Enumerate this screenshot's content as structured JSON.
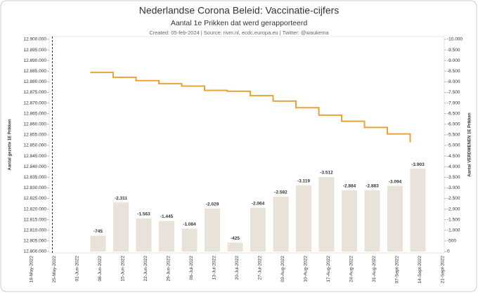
{
  "chart_data": {
    "type": "bar-line",
    "title": "Nederlandse Corona Beleid: Vaccinatie-cijfers",
    "subtitle": "Aantal 1e Prikken dat werd gerapporteerd",
    "caption": "Created: 05-feb-2024 | Source: rivm.nl,  ecdc.europa.eu | Twitter: @waukema",
    "ylabel": "Aantal gezette 1E Prikken",
    "y2label": "Aantal VERDWENEN 1E Prikken",
    "categories": [
      "18-May-2022",
      "25-May-2022",
      "01-Jun-2022",
      "08-Jun-2022",
      "15-Jun-2022",
      "22-Jun-2022",
      "29-Jun-2022",
      "06-Jul-2022",
      "13-Jul-2022",
      "20-Jul-2022",
      "27-Jul-2022",
      "03-Aug-2022",
      "10-Aug-2022",
      "17-Aug-2022",
      "24-Aug-2022",
      "31-Aug-2022",
      "07-Sept-2022",
      "14-Sept-2022",
      "21-Sept-2022"
    ],
    "series": [
      {
        "type": "line",
        "axis": "y",
        "color": "#e8a33a",
        "values": [
          null,
          null,
          null,
          12884400,
          12882089,
          12880526,
          12879081,
          12877997,
          12875968,
          12875543,
          12873479,
          12870897,
          12867778,
          12864266,
          12861382,
          12858499,
          12855405,
          12851502,
          null
        ]
      },
      {
        "type": "bar",
        "axis": "y2",
        "color": "#e9e2d8",
        "values": [
          null,
          null,
          null,
          -745,
          -2311,
          -1563,
          -1445,
          -1084,
          -2029,
          -425,
          -2064,
          -2582,
          -3119,
          -3512,
          -2884,
          -2883,
          -3094,
          -3903,
          null
        ],
        "value_labels": [
          null,
          null,
          null,
          "-745",
          "-2.311",
          "-1.563",
          "-1.445",
          "-1.084",
          "-2.029",
          "-425",
          "-2.064",
          "-2.582",
          "-3.119",
          "-3.512",
          "-2.884",
          "-2.883",
          "-3.094",
          "-3.903",
          null
        ]
      }
    ],
    "ylim": [
      12800000,
      12900000
    ],
    "yticks": [
      {
        "value": 12800000,
        "label": "12.800.000"
      },
      {
        "value": 12805000,
        "label": "12.805.000"
      },
      {
        "value": 12810000,
        "label": "12.810.000"
      },
      {
        "value": 12815000,
        "label": "12.815.000"
      },
      {
        "value": 12820000,
        "label": "12.820.000"
      },
      {
        "value": 12825000,
        "label": "12.825.000"
      },
      {
        "value": 12830000,
        "label": "12.830.000"
      },
      {
        "value": 12835000,
        "label": "12.835.000"
      },
      {
        "value": 12840000,
        "label": "12.840.000"
      },
      {
        "value": 12845000,
        "label": "12.845.000"
      },
      {
        "value": 12850000,
        "label": "12.850.000"
      },
      {
        "value": 12855000,
        "label": "12.855.000"
      },
      {
        "value": 12860000,
        "label": "12.860.000"
      },
      {
        "value": 12865000,
        "label": "12.865.000"
      },
      {
        "value": 12870000,
        "label": "12.870.000"
      },
      {
        "value": 12875000,
        "label": "12.875.000"
      },
      {
        "value": 12880000,
        "label": "12.880.000"
      },
      {
        "value": 12885000,
        "label": "12.885.000"
      },
      {
        "value": 12890000,
        "label": "12.890.000"
      },
      {
        "value": 12895000,
        "label": "12.895.000"
      },
      {
        "value": 12900000,
        "label": "12.900.000"
      }
    ],
    "y2lim": [
      0,
      -10000
    ],
    "y2ticks": [
      0,
      -500,
      {
        "value": -1000,
        "label": "-1.000"
      },
      {
        "value": -1500,
        "label": "-1.500"
      },
      {
        "value": -2000,
        "label": "-2.000"
      },
      {
        "value": -2500,
        "label": "-2.500"
      },
      {
        "value": -3000,
        "label": "-3.000"
      },
      {
        "value": -3500,
        "label": "-3.500"
      },
      {
        "value": -4000,
        "label": "-4.000"
      },
      {
        "value": -4500,
        "label": "-4.500"
      },
      {
        "value": -5000,
        "label": "-5.000"
      },
      {
        "value": -5500,
        "label": "-5.500"
      },
      {
        "value": -6000,
        "label": "-6.000"
      },
      {
        "value": -6500,
        "label": "-6.500"
      },
      {
        "value": -7000,
        "label": "-7.000"
      },
      {
        "value": -7500,
        "label": "-7.500"
      },
      {
        "value": -8000,
        "label": "-8.000"
      },
      {
        "value": -8500,
        "label": "-8.500"
      },
      {
        "value": -9000,
        "label": "-9.000"
      },
      {
        "value": -9500,
        "label": "-9.500"
      },
      {
        "value": -10000,
        "label": "-10.000"
      }
    ]
  }
}
